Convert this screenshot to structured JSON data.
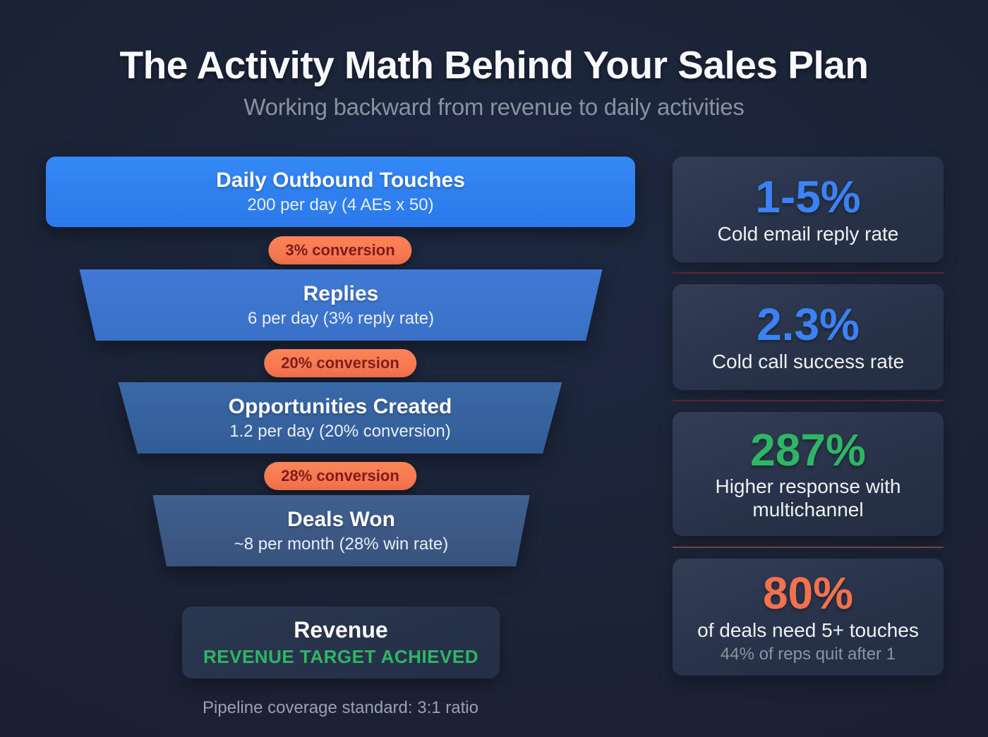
{
  "page": {
    "title": "The Activity Math Behind Your Sales Plan",
    "subtitle": "Working backward from revenue to daily activities",
    "footnote": "Pipeline coverage standard: 3:1 ratio"
  },
  "funnel": {
    "stages": [
      {
        "title": "Daily Outbound Touches",
        "detail": "200 per day (4 AEs x 50)",
        "color": "#2e80f2"
      },
      {
        "title": "Replies",
        "detail": "6 per day (3% reply rate)",
        "color": "#3c74cf"
      },
      {
        "title": "Opportunities Created",
        "detail": "1.2 per day (20% conversion)",
        "color": "#34639f"
      },
      {
        "title": "Deals Won",
        "detail": "~8 per month (28% win rate)",
        "color": "#3c5a86"
      }
    ],
    "conversions": [
      {
        "label": "3% conversion"
      },
      {
        "label": "20% conversion"
      },
      {
        "label": "28% conversion"
      }
    ],
    "result": {
      "title": "Revenue",
      "status": "REVENUE TARGET ACHIEVED",
      "status_color": "#2eb566"
    }
  },
  "stats": [
    {
      "value": "1-5%",
      "label": "Cold email reply rate",
      "color": "#3b82f6"
    },
    {
      "value": "2.3%",
      "label": "Cold call success rate",
      "color": "#3b82f6"
    },
    {
      "value": "287%",
      "label": "Higher response with multichannel",
      "color": "#2eb566"
    },
    {
      "value": "80%",
      "label": "of deals need 5+ touches",
      "sublabel": "44% of reps quit after 1",
      "color": "#f2714e"
    }
  ],
  "colors": {
    "background": "#1a2234",
    "accent_blue": "#3b82f6",
    "accent_green": "#2eb566",
    "accent_orange": "#f2714e",
    "badge_background": "#f8784f",
    "badge_text": "#7e1c1c",
    "divider_red": "#5a2630",
    "card_background": "#2b3447"
  }
}
